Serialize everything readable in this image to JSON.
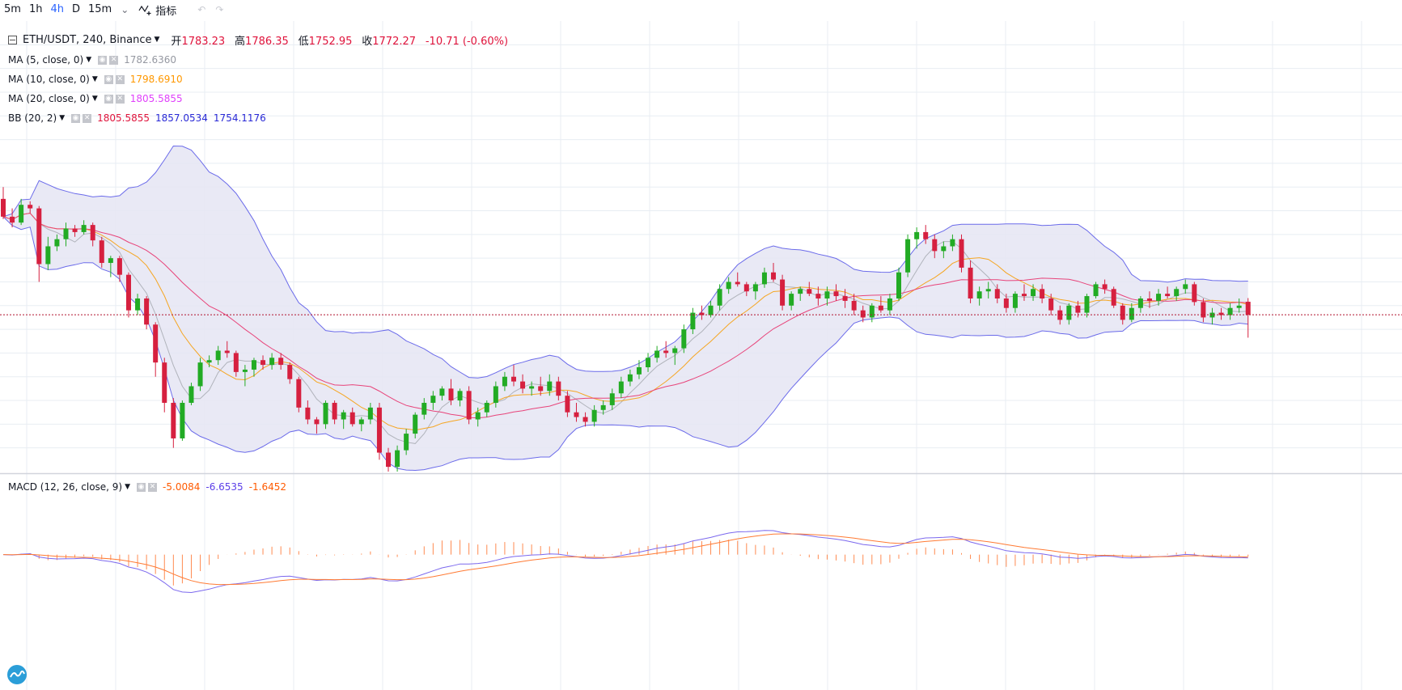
{
  "toolbar": {
    "timeframes": [
      {
        "label": "5m",
        "active": false
      },
      {
        "label": "1h",
        "active": false
      },
      {
        "label": "4h",
        "active": true
      },
      {
        "label": "D",
        "active": false
      },
      {
        "label": "15m",
        "active": false
      }
    ],
    "dropdown_icon": "chevron-down-icon",
    "indicator_label": "指标",
    "undo_icon": "undo-icon",
    "redo_icon": "redo-icon"
  },
  "legend": {
    "symbol": "ETH/USDT, 240, Binance",
    "ohlc": [
      {
        "label": "开",
        "value": "1783.23"
      },
      {
        "label": "高",
        "value": "1786.35"
      },
      {
        "label": "低",
        "value": "1752.95"
      },
      {
        "label": "收",
        "value": "1772.27"
      }
    ],
    "change": "-10.71 (-0.60%)",
    "indicators": [
      {
        "label": "MA (5, close, 0)",
        "values": [
          {
            "v": "1782.6360",
            "color": "#9598a1"
          }
        ]
      },
      {
        "label": "MA (10, close, 0)",
        "values": [
          {
            "v": "1798.6910",
            "color": "#ff9800"
          }
        ]
      },
      {
        "label": "MA (20, close, 0)",
        "values": [
          {
            "v": "1805.5855",
            "color": "#e040fb"
          }
        ]
      },
      {
        "label": "BB (20, 2)",
        "values": [
          {
            "v": "1805.5855",
            "color": "#e0143c"
          },
          {
            "v": "1857.0534",
            "color": "#2929d6"
          },
          {
            "v": "1754.1176",
            "color": "#2929d6"
          }
        ]
      }
    ],
    "macd": {
      "label": "MACD (12, 26, close, 9)",
      "values": [
        {
          "v": "-5.0084",
          "color": "#ff5a00"
        },
        {
          "v": "-6.6535",
          "color": "#5b3ee8"
        },
        {
          "v": "-1.6452",
          "color": "#ff5a00"
        }
      ]
    }
  },
  "colors": {
    "up": "#22ab24",
    "down": "#d6203f",
    "bb": "#6b6bea",
    "bb_fill": "#e5e5f3",
    "ma5": "#b0b3bb",
    "ma10": "#f5a623",
    "ma20": "#e8447a",
    "macd": "#7b68ee",
    "signal": "#ff7a33",
    "hist": "#ff8a50",
    "grid": "#e8edf3",
    "current_price": "#b2132e"
  },
  "chart_data": [
    {
      "type": "candlestick",
      "title": "ETH/USDT, 240, Binance",
      "ylim": [
        1640,
        2020
      ],
      "current_price": 1772.27,
      "candles": [
        [
          1870,
          1880,
          1853,
          1855
        ],
        [
          1855,
          1862,
          1846,
          1850
        ],
        [
          1850,
          1870,
          1848,
          1865
        ],
        [
          1865,
          1868,
          1858,
          1862
        ],
        [
          1862,
          1864,
          1800,
          1815
        ],
        [
          1815,
          1838,
          1810,
          1830
        ],
        [
          1830,
          1840,
          1826,
          1836
        ],
        [
          1836,
          1850,
          1830,
          1845
        ],
        [
          1845,
          1848,
          1838,
          1842
        ],
        [
          1842,
          1852,
          1840,
          1848
        ],
        [
          1848,
          1850,
          1830,
          1835
        ],
        [
          1835,
          1838,
          1812,
          1816
        ],
        [
          1816,
          1822,
          1804,
          1820
        ],
        [
          1820,
          1822,
          1800,
          1806
        ],
        [
          1806,
          1808,
          1770,
          1776
        ],
        [
          1776,
          1790,
          1772,
          1786
        ],
        [
          1786,
          1788,
          1760,
          1764
        ],
        [
          1764,
          1766,
          1720,
          1732
        ],
        [
          1732,
          1736,
          1690,
          1698
        ],
        [
          1698,
          1702,
          1660,
          1668
        ],
        [
          1668,
          1700,
          1666,
          1698
        ],
        [
          1698,
          1715,
          1696,
          1712
        ],
        [
          1712,
          1736,
          1708,
          1732
        ],
        [
          1732,
          1738,
          1728,
          1734
        ],
        [
          1734,
          1746,
          1730,
          1742
        ],
        [
          1742,
          1750,
          1736,
          1740
        ],
        [
          1740,
          1742,
          1720,
          1724
        ],
        [
          1724,
          1730,
          1712,
          1726
        ],
        [
          1726,
          1736,
          1720,
          1734
        ],
        [
          1734,
          1738,
          1726,
          1730
        ],
        [
          1730,
          1740,
          1726,
          1736
        ],
        [
          1736,
          1740,
          1726,
          1730
        ],
        [
          1730,
          1732,
          1714,
          1718
        ],
        [
          1718,
          1720,
          1690,
          1694
        ],
        [
          1694,
          1700,
          1680,
          1684
        ],
        [
          1684,
          1686,
          1672,
          1680
        ],
        [
          1680,
          1700,
          1676,
          1698
        ],
        [
          1698,
          1700,
          1680,
          1684
        ],
        [
          1684,
          1692,
          1676,
          1690
        ],
        [
          1690,
          1694,
          1678,
          1680
        ],
        [
          1680,
          1686,
          1674,
          1684
        ],
        [
          1684,
          1698,
          1680,
          1694
        ],
        [
          1694,
          1698,
          1650,
          1656
        ],
        [
          1656,
          1660,
          1640,
          1644
        ],
        [
          1644,
          1662,
          1640,
          1658
        ],
        [
          1658,
          1676,
          1654,
          1672
        ],
        [
          1672,
          1690,
          1668,
          1688
        ],
        [
          1688,
          1702,
          1684,
          1698
        ],
        [
          1698,
          1708,
          1692,
          1704
        ],
        [
          1704,
          1712,
          1700,
          1710
        ],
        [
          1710,
          1718,
          1696,
          1700
        ],
        [
          1700,
          1710,
          1695,
          1708
        ],
        [
          1708,
          1712,
          1680,
          1684
        ],
        [
          1684,
          1694,
          1678,
          1690
        ],
        [
          1690,
          1700,
          1686,
          1698
        ],
        [
          1698,
          1716,
          1694,
          1712
        ],
        [
          1712,
          1724,
          1708,
          1720
        ],
        [
          1720,
          1730,
          1712,
          1716
        ],
        [
          1716,
          1722,
          1706,
          1710
        ],
        [
          1710,
          1716,
          1704,
          1712
        ],
        [
          1712,
          1720,
          1704,
          1708
        ],
        [
          1708,
          1722,
          1704,
          1716
        ],
        [
          1716,
          1720,
          1700,
          1704
        ],
        [
          1704,
          1708,
          1686,
          1690
        ],
        [
          1690,
          1698,
          1682,
          1686
        ],
        [
          1686,
          1690,
          1678,
          1682
        ],
        [
          1682,
          1696,
          1678,
          1692
        ],
        [
          1692,
          1700,
          1688,
          1696
        ],
        [
          1696,
          1710,
          1692,
          1706
        ],
        [
          1706,
          1720,
          1702,
          1716
        ],
        [
          1716,
          1726,
          1712,
          1722
        ],
        [
          1722,
          1734,
          1718,
          1728
        ],
        [
          1728,
          1740,
          1724,
          1736
        ],
        [
          1736,
          1746,
          1732,
          1742
        ],
        [
          1742,
          1750,
          1736,
          1740
        ],
        [
          1740,
          1746,
          1730,
          1744
        ],
        [
          1744,
          1764,
          1740,
          1760
        ],
        [
          1760,
          1778,
          1756,
          1774
        ],
        [
          1774,
          1780,
          1768,
          1772
        ],
        [
          1772,
          1784,
          1770,
          1780
        ],
        [
          1780,
          1798,
          1776,
          1794
        ],
        [
          1794,
          1804,
          1790,
          1800
        ],
        [
          1800,
          1808,
          1796,
          1798
        ],
        [
          1798,
          1800,
          1788,
          1792
        ],
        [
          1792,
          1800,
          1785,
          1798
        ],
        [
          1798,
          1812,
          1795,
          1808
        ],
        [
          1808,
          1816,
          1800,
          1802
        ],
        [
          1802,
          1806,
          1776,
          1780
        ],
        [
          1780,
          1792,
          1776,
          1790
        ],
        [
          1790,
          1796,
          1784,
          1794
        ],
        [
          1794,
          1800,
          1788,
          1790
        ],
        [
          1790,
          1796,
          1780,
          1786
        ],
        [
          1786,
          1796,
          1780,
          1792
        ],
        [
          1792,
          1798,
          1784,
          1788
        ],
        [
          1788,
          1794,
          1778,
          1784
        ],
        [
          1784,
          1790,
          1772,
          1776
        ],
        [
          1776,
          1780,
          1766,
          1770
        ],
        [
          1770,
          1782,
          1766,
          1780
        ],
        [
          1780,
          1788,
          1774,
          1776
        ],
        [
          1776,
          1790,
          1772,
          1786
        ],
        [
          1786,
          1812,
          1784,
          1808
        ],
        [
          1808,
          1840,
          1804,
          1836
        ],
        [
          1836,
          1846,
          1828,
          1842
        ],
        [
          1842,
          1848,
          1832,
          1836
        ],
        [
          1836,
          1840,
          1820,
          1826
        ],
        [
          1826,
          1834,
          1820,
          1830
        ],
        [
          1830,
          1840,
          1826,
          1836
        ],
        [
          1836,
          1840,
          1808,
          1812
        ],
        [
          1812,
          1818,
          1782,
          1786
        ],
        [
          1786,
          1796,
          1780,
          1792
        ],
        [
          1792,
          1800,
          1786,
          1794
        ],
        [
          1794,
          1798,
          1782,
          1786
        ],
        [
          1786,
          1790,
          1774,
          1778
        ],
        [
          1778,
          1792,
          1774,
          1790
        ],
        [
          1790,
          1798,
          1784,
          1788
        ],
        [
          1788,
          1798,
          1784,
          1794
        ],
        [
          1794,
          1798,
          1782,
          1786
        ],
        [
          1786,
          1790,
          1772,
          1776
        ],
        [
          1776,
          1780,
          1764,
          1768
        ],
        [
          1768,
          1782,
          1764,
          1780
        ],
        [
          1780,
          1784,
          1770,
          1774
        ],
        [
          1774,
          1790,
          1770,
          1788
        ],
        [
          1788,
          1800,
          1786,
          1798
        ],
        [
          1798,
          1802,
          1790,
          1794
        ],
        [
          1794,
          1796,
          1778,
          1780
        ],
        [
          1780,
          1782,
          1764,
          1768
        ],
        [
          1768,
          1782,
          1766,
          1778
        ],
        [
          1778,
          1788,
          1774,
          1786
        ],
        [
          1786,
          1792,
          1778,
          1784
        ],
        [
          1784,
          1794,
          1780,
          1790
        ],
        [
          1790,
          1796,
          1786,
          1788
        ],
        [
          1788,
          1796,
          1784,
          1794
        ],
        [
          1794,
          1802,
          1790,
          1798
        ],
        [
          1798,
          1800,
          1780,
          1783
        ],
        [
          1783,
          1786,
          1766,
          1770
        ],
        [
          1770,
          1778,
          1764,
          1774
        ],
        [
          1774,
          1778,
          1768,
          1772
        ],
        [
          1772,
          1782,
          1768,
          1778
        ],
        [
          1778,
          1786,
          1774,
          1780
        ],
        [
          1783.23,
          1786.35,
          1752.95,
          1772.27
        ]
      ]
    },
    {
      "type": "macd",
      "title": "MACD (12, 26, close, 9)",
      "ylim": [
        -140,
        80
      ],
      "last": {
        "hist": -5.0084,
        "macd": -6.6535,
        "signal": -1.6452
      }
    }
  ]
}
